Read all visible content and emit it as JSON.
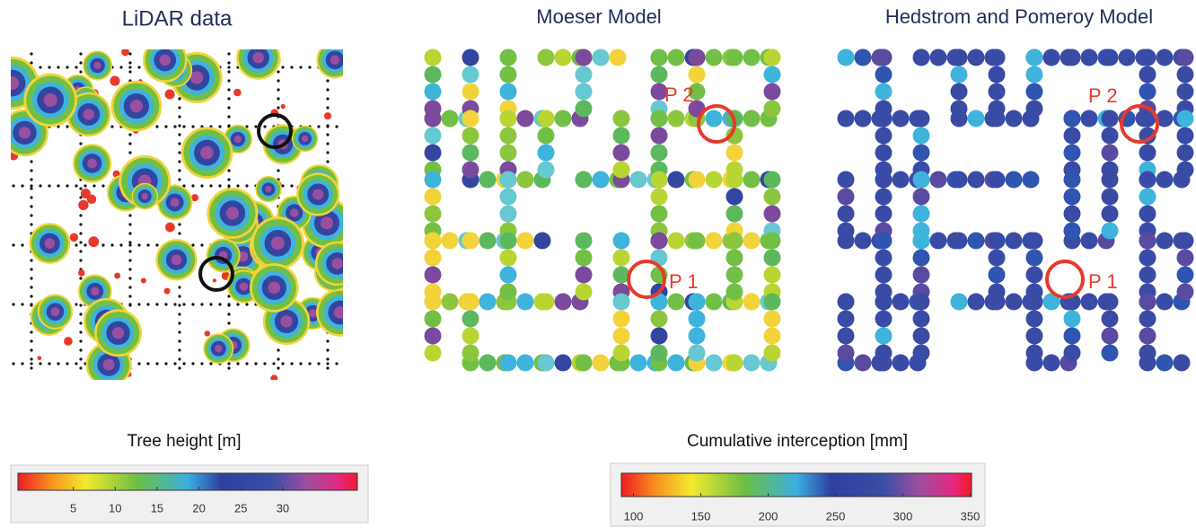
{
  "panels": [
    {
      "title": "LiDAR data"
    },
    {
      "title": "Moeser Model",
      "labels": [
        "P 2",
        "P 1"
      ]
    },
    {
      "title": "Hedstrom and Pomeroy Model",
      "labels": [
        "P 2",
        "P 1"
      ]
    }
  ],
  "colorbars": [
    {
      "title": "Tree height [m]",
      "lim": [
        -1.6,
        38.9
      ],
      "ticks": [
        5,
        10,
        15,
        20,
        25,
        30
      ]
    },
    {
      "title": "Cumulative interception [mm]",
      "lim": [
        91,
        351
      ],
      "ticks": [
        100,
        150,
        200,
        250,
        300,
        350
      ]
    }
  ]
}
